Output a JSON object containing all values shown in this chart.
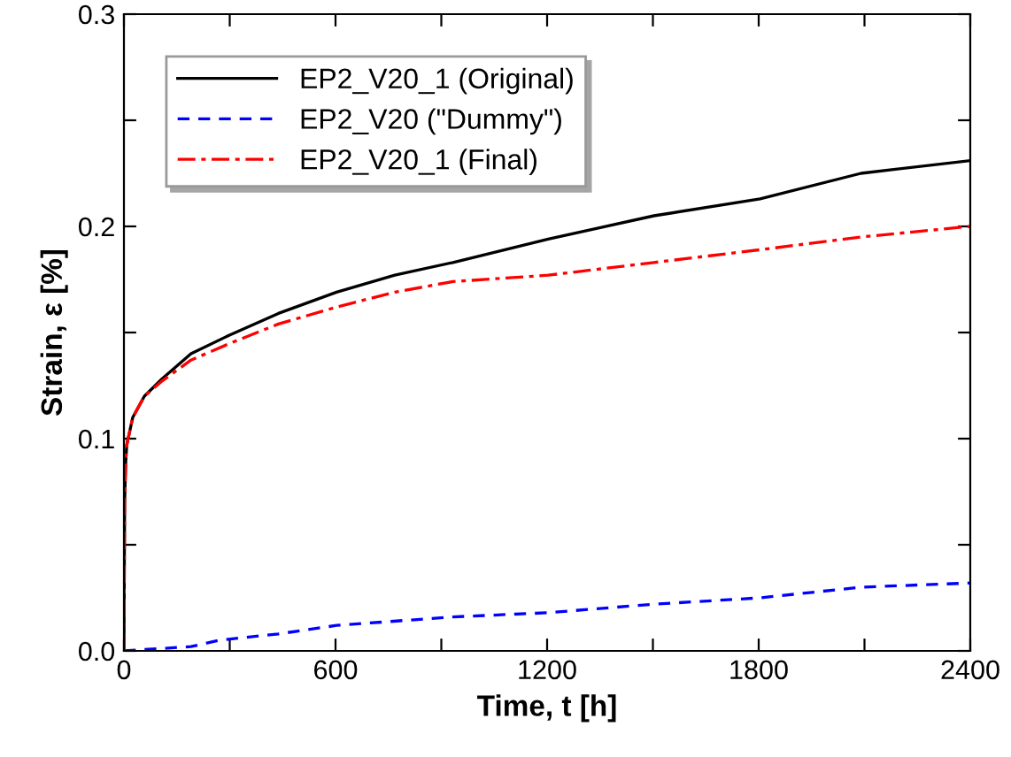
{
  "chart_data": {
    "type": "line",
    "xlabel": "Time, t [h]",
    "ylabel": "Strain, ε [%]",
    "xlim": [
      0,
      2400
    ],
    "ylim": [
      0,
      0.3
    ],
    "xticks": [
      0,
      {
        "value": 300,
        "label": null
      },
      600,
      {
        "value": 900,
        "label": null
      },
      1200,
      {
        "value": 1500,
        "label": null
      },
      1800,
      {
        "value": 2100,
        "label": null
      },
      2400
    ],
    "yticks": [
      {
        "value": 0,
        "label": "0.0"
      },
      {
        "value": 0.05,
        "label": null
      },
      0.1,
      {
        "value": 0.15,
        "label": null
      },
      0.2,
      {
        "value": 0.25,
        "label": null
      },
      0.3
    ],
    "grid": false,
    "legend": "top left",
    "marker": "none",
    "series": [
      {
        "name": "EP2_V20_1 (Original)",
        "color": "#000000",
        "line_style": "solid",
        "x": [
          0,
          2,
          5,
          8,
          25,
          58,
          107,
          190,
          302,
          438,
          603,
          768,
          933,
          1203,
          1503,
          1804,
          2090,
          2400
        ],
        "values": [
          0,
          0.07,
          0.089,
          0.097,
          0.11,
          0.12,
          0.128,
          0.14,
          0.149,
          0.159,
          0.169,
          0.177,
          0.183,
          0.194,
          0.205,
          0.213,
          0.225,
          0.231
        ]
      },
      {
        "name": "EP2_V20 (\"Dummy\")",
        "color": "#0000ff",
        "line_style": "dashed",
        "x": [
          0,
          190,
          270,
          438,
          603,
          933,
          1203,
          1503,
          1804,
          2090,
          2400
        ],
        "values": [
          0,
          0.002,
          0.005,
          0.008,
          0.012,
          0.016,
          0.018,
          0.022,
          0.025,
          0.03,
          0.032
        ]
      },
      {
        "name": "EP2_V20_1 (Final)",
        "color": "#ff0000",
        "line_style": "dashdot",
        "x": [
          0,
          2,
          5,
          8,
          25,
          58,
          107,
          190,
          302,
          438,
          603,
          768,
          933,
          1203,
          1503,
          1804,
          2090,
          2400
        ],
        "values": [
          0,
          0.07,
          0.089,
          0.097,
          0.11,
          0.12,
          0.127,
          0.137,
          0.145,
          0.154,
          0.162,
          0.169,
          0.174,
          0.177,
          0.183,
          0.189,
          0.195,
          0.2
        ]
      }
    ]
  }
}
